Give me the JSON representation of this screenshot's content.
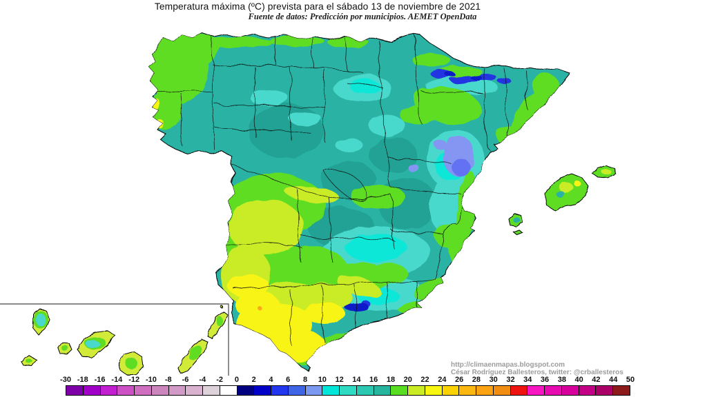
{
  "header": {
    "title": "Temperatura máxima (ºC) prevista para el sábado 13 de noviembre de 2021",
    "subtitle": "Fuente de datos: Predicción por municipios. AEMET OpenData"
  },
  "attribution": {
    "line1": "http://climaenmapas.blogspot.com",
    "line2": "César Rodríguez Ballesteros, twitter: @crballesteros"
  },
  "legend": {
    "tick_labels": [
      "-30",
      "-18",
      "-16",
      "-14",
      "-12",
      "-10",
      "-8",
      "-6",
      "-4",
      "-2",
      "0",
      "2",
      "4",
      "6",
      "8",
      "10",
      "12",
      "14",
      "16",
      "18",
      "20",
      "22",
      "24",
      "26",
      "28",
      "30",
      "32",
      "34",
      "36",
      "38",
      "40",
      "42",
      "44",
      "50"
    ],
    "segment_colors": [
      "#7d00a8",
      "#a000c8",
      "#c21fd1",
      "#cd51c4",
      "#d06fc0",
      "#cd85bd",
      "#d29ac6",
      "#d9b2cf",
      "#ded2da",
      "#ffffff",
      "#000080",
      "#0000c8",
      "#2236f0",
      "#3f64e5",
      "#7c99f2",
      "#00e6d9",
      "#2fdcc3",
      "#2bc9b1",
      "#27b5a0",
      "#59dd20",
      "#c9ec25",
      "#f8f712",
      "#fbd305",
      "#fbb811",
      "#fba312",
      "#f28d14",
      "#ef1410",
      "#f716c2",
      "#e80bb2",
      "#d7009c",
      "#c30085",
      "#ab0068",
      "#8e1b1b"
    ]
  },
  "map": {
    "palette": {
      "base": "#2cb3a4",
      "teal_dark": "#22a294",
      "cyan": "#4ad8cc",
      "cyan_bright": "#0fe7d8",
      "green": "#5edd24",
      "yellow_green": "#c9ec28",
      "yellow": "#f8f512",
      "orange": "#fbaa12",
      "periwinkle": "#8496f2",
      "blue_core": "#6472f2",
      "pyrenees_blue": "#2336e0",
      "navy": "#101fc8",
      "island_base": "#d2ea38"
    }
  }
}
